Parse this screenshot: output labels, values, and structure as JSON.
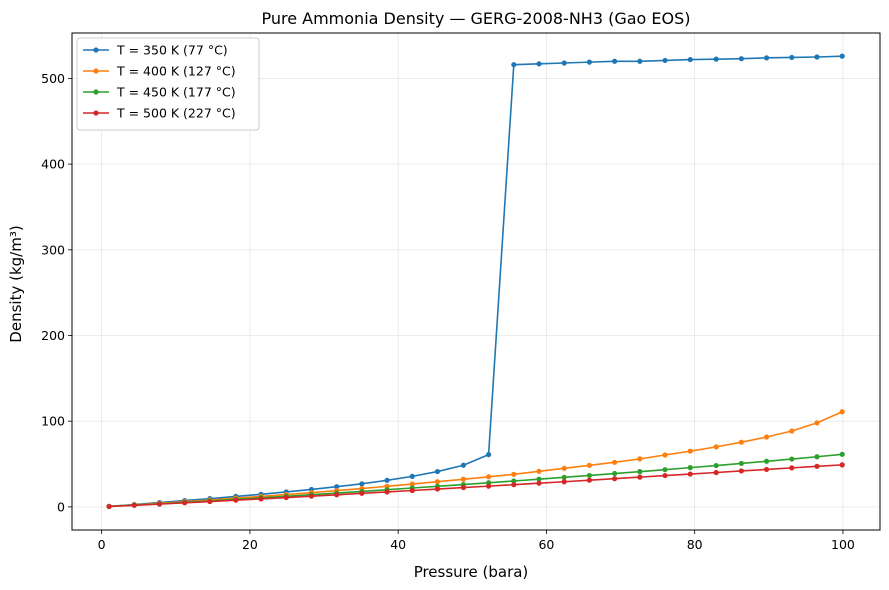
{
  "chart_data": {
    "type": "line",
    "title": "Pure Ammonia Density — GERG-2008-NH3 (Gao EOS)",
    "xlabel": "Pressure (bara)",
    "ylabel": "Density (kg/m³)",
    "xlim": [
      -4,
      105
    ],
    "ylim": [
      -27,
      553
    ],
    "xticks": [
      0,
      20,
      40,
      60,
      80,
      100
    ],
    "yticks": [
      0,
      100,
      200,
      300,
      400,
      500
    ],
    "grid": true,
    "legend_position": "top-left",
    "x": [
      1.0,
      4.4,
      7.8,
      11.2,
      14.6,
      18.1,
      21.5,
      24.9,
      28.3,
      31.7,
      35.1,
      38.5,
      41.9,
      45.3,
      48.8,
      52.2,
      55.6,
      59.0,
      62.4,
      65.8,
      69.2,
      72.6,
      76.0,
      79.4,
      82.9,
      86.3,
      89.7,
      93.1,
      96.5,
      99.9
    ],
    "series": [
      {
        "name": "T = 350 K (77 °C)",
        "color": "#1f77b4",
        "values": [
          0.6,
          2.7,
          5.0,
          7.3,
          9.6,
          12.2,
          14.6,
          17.4,
          20.3,
          23.5,
          26.9,
          31.0,
          35.6,
          41.2,
          48.6,
          61.0,
          516,
          517,
          518,
          519,
          520,
          520,
          521,
          522,
          522.5,
          523,
          524,
          524.5,
          525,
          526
        ]
      },
      {
        "name": "T = 400 K (127 °C)",
        "color": "#ff7f0e",
        "values": [
          0.5,
          2.3,
          4.1,
          6.1,
          8.0,
          10.2,
          12.2,
          14.4,
          16.6,
          19.0,
          21.4,
          24.0,
          26.6,
          29.4,
          32.2,
          35.1,
          38.0,
          41.5,
          45.0,
          48.5,
          52.0,
          56.0,
          60.5,
          65.0,
          70.0,
          75.5,
          81.5,
          88.5,
          98.0,
          111.0
        ]
      },
      {
        "name": "T = 450 K (177 °C)",
        "color": "#2ca02c",
        "values": [
          0.5,
          2.0,
          3.6,
          5.3,
          7.0,
          8.8,
          10.6,
          12.4,
          14.2,
          16.1,
          18.0,
          20.0,
          22.0,
          24.0,
          26.0,
          28.1,
          30.2,
          32.3,
          34.5,
          36.7,
          38.9,
          41.1,
          43.4,
          45.8,
          48.2,
          50.7,
          53.2,
          55.8,
          58.5,
          61.3
        ]
      },
      {
        "name": "T = 500 K (227 °C)",
        "color": "#d62728",
        "values": [
          0.4,
          1.8,
          3.2,
          4.7,
          6.2,
          7.8,
          9.3,
          10.9,
          12.5,
          14.1,
          15.8,
          17.4,
          19.1,
          20.8,
          22.5,
          24.2,
          25.9,
          27.6,
          29.3,
          31.1,
          32.9,
          34.7,
          36.5,
          38.3,
          40.1,
          41.9,
          43.7,
          45.5,
          47.3,
          49.0
        ]
      }
    ]
  }
}
